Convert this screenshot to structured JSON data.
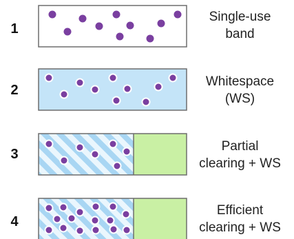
{
  "colors": {
    "band_outline": "#6d6d6d",
    "single_use_fill": "#ffffff",
    "whitespace_fill": "#c4e4f8",
    "stripe_light": "#eaf6fd",
    "stripe_blue": "#a8d6f3",
    "cleared_fill": "#c9f0a4",
    "dot_fill": "#7a3fa0",
    "dot_stroke": "#ffffff"
  },
  "rows": [
    {
      "number": "1",
      "label_lines": [
        "Single-use",
        "band"
      ]
    },
    {
      "number": "2",
      "label_lines": [
        "Whitespace",
        "(WS)"
      ]
    },
    {
      "number": "3",
      "label_lines": [
        "Partial",
        "clearing + WS"
      ]
    },
    {
      "number": "4",
      "label_lines": [
        "Efficient",
        "clearing + WS"
      ]
    }
  ]
}
